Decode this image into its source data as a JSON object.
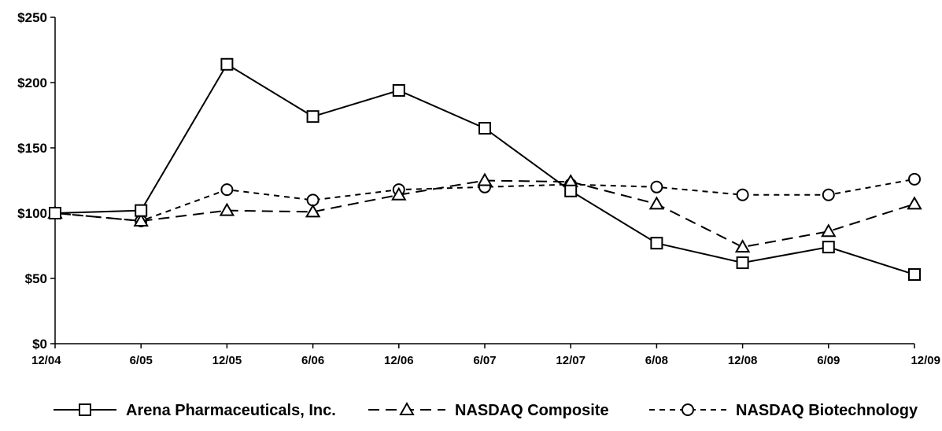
{
  "chart_data": {
    "type": "line",
    "categories": [
      "12/04",
      "6/05",
      "12/05",
      "6/06",
      "12/06",
      "6/07",
      "12/07",
      "6/08",
      "12/08",
      "6/09",
      "12/09"
    ],
    "y_ticks": [
      "$0",
      "$50",
      "$100",
      "$150",
      "$200",
      "$250"
    ],
    "ylim": [
      0,
      250
    ],
    "grid": false,
    "legend_position": "bottom",
    "series": [
      {
        "name": "Arena Pharmaceuticals, Inc.",
        "marker": "square",
        "dash": "solid",
        "values": [
          100,
          102,
          214,
          174,
          194,
          165,
          117,
          77,
          62,
          74,
          53
        ]
      },
      {
        "name": "NASDAQ Composite",
        "marker": "triangle",
        "dash": "dashed",
        "values": [
          100,
          94,
          102,
          101,
          114,
          125,
          124,
          107,
          74,
          86,
          107
        ]
      },
      {
        "name": "NASDAQ Biotechnology",
        "marker": "circle",
        "dash": "dotted",
        "values": [
          100,
          94,
          118,
          110,
          118,
          120,
          122,
          120,
          114,
          114,
          126
        ]
      }
    ]
  }
}
